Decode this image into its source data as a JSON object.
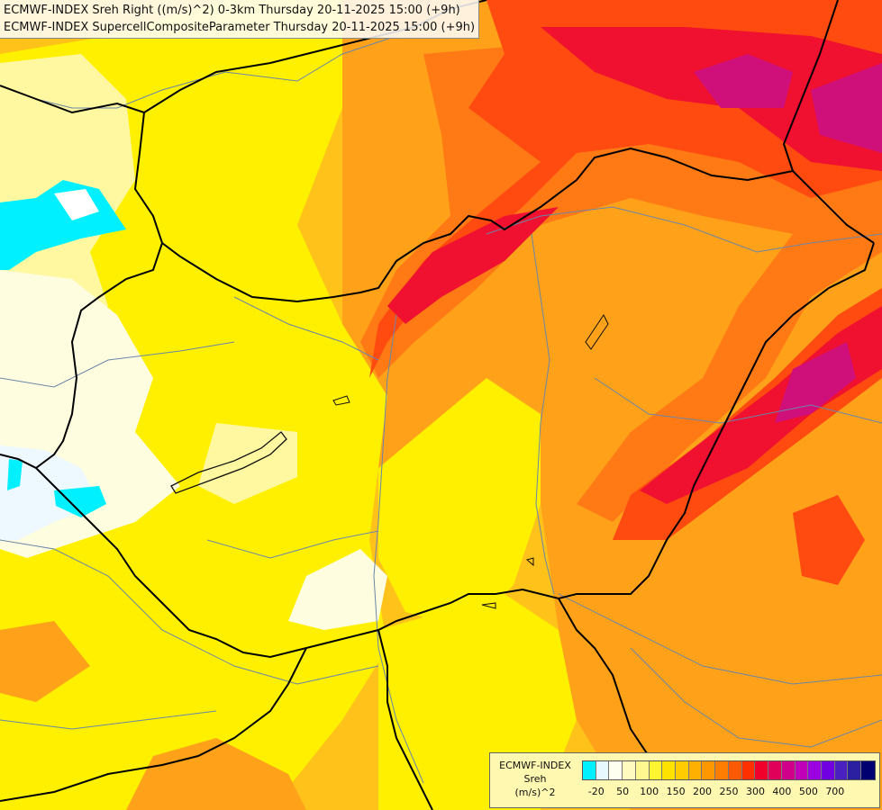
{
  "header": {
    "line1": "ECMWF-INDEX Sreh Right ((m/s)^2) 0-3km Thursday 20-11-2025 15:00 (+9h)",
    "line2": "ECMWF-INDEX SupercellCompositeParameter Thursday 20-11-2025 15:00 (+9h)"
  },
  "legend": {
    "line1": "ECMWF-INDEX",
    "line2": "Sreh",
    "line3": "(m/s)^2",
    "colors": [
      "#00f0ff",
      "#e8f8ff",
      "#fffff0",
      "#fffbc0",
      "#fff890",
      "#fff530",
      "#fde200",
      "#ffcc00",
      "#ffb000",
      "#ff9800",
      "#ff7d00",
      "#ff5a00",
      "#ff3000",
      "#f0002a",
      "#e0005a",
      "#d0008a",
      "#c000b8",
      "#9a00e0",
      "#7000e0",
      "#4a20c0",
      "#2a20a0",
      "#000070"
    ],
    "ticks": [
      "-20",
      "50",
      "100",
      "150",
      "200",
      "250",
      "300",
      "400",
      "500",
      "700"
    ]
  },
  "colors": {
    "pale": "#fffde0",
    "light_yellow": "#fff8a0",
    "yellow": "#fff000",
    "gold": "#ffd21a",
    "orange": "#ffa21a",
    "dark_orange": "#ff7a14",
    "red_orange": "#ff4a10",
    "red": "#f01030",
    "magenta": "#d0107a",
    "cyan": "#00f0ff"
  }
}
